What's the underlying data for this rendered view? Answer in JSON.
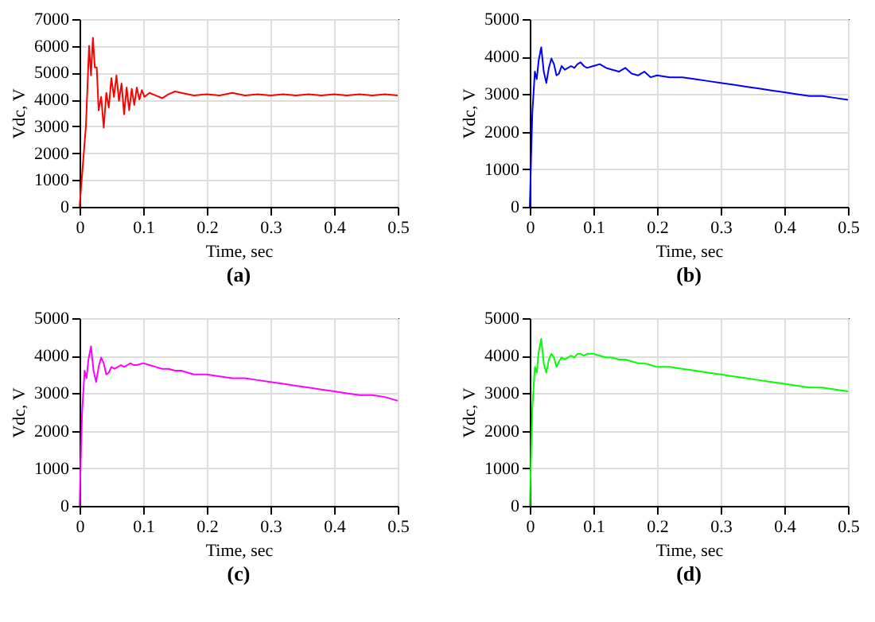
{
  "chart_data": [
    {
      "type": "line",
      "xlabel": "Time, sec",
      "ylabel": "Vdc, V",
      "annotations": [
        "(a)"
      ],
      "xlim": [
        0,
        0.5
      ],
      "xticks": [
        0,
        0.1,
        0.2,
        0.3,
        0.4,
        0.5
      ],
      "ylim": [
        0,
        7000
      ],
      "yticks": [
        0,
        1000,
        2000,
        3000,
        4000,
        5000,
        6000,
        7000
      ],
      "grid": true,
      "line_style": "solid",
      "marker": "none",
      "x": [
        0,
        0.005,
        0.01,
        0.015,
        0.018,
        0.021,
        0.024,
        0.027,
        0.03,
        0.034,
        0.038,
        0.042,
        0.046,
        0.05,
        0.054,
        0.058,
        0.062,
        0.066,
        0.07,
        0.074,
        0.078,
        0.082,
        0.086,
        0.09,
        0.094,
        0.098,
        0.102,
        0.11,
        0.12,
        0.13,
        0.14,
        0.15,
        0.16,
        0.17,
        0.18,
        0.2,
        0.22,
        0.24,
        0.26,
        0.28,
        0.3,
        0.32,
        0.34,
        0.36,
        0.38,
        0.4,
        0.42,
        0.44,
        0.46,
        0.48,
        0.5
      ],
      "series": [
        {
          "color": "#ff0000",
          "values": [
            0,
            1500,
            3000,
            6000,
            4900,
            6300,
            5200,
            5200,
            3600,
            4100,
            2950,
            4250,
            3700,
            4800,
            4100,
            4900,
            3950,
            4600,
            3450,
            4450,
            3600,
            4400,
            3800,
            4450,
            4000,
            4350,
            4100,
            4250,
            4150,
            4050,
            4200,
            4300,
            4250,
            4200,
            4150,
            4200,
            4150,
            4250,
            4150,
            4200,
            4150,
            4200,
            4150,
            4200,
            4150,
            4200,
            4150,
            4200,
            4150,
            4200,
            4150
          ]
        }
      ]
    },
    {
      "type": "line",
      "xlabel": "Time, sec",
      "ylabel": "Vdc, V",
      "annotations": [
        "(b)"
      ],
      "xlim": [
        0,
        0.5
      ],
      "xticks": [
        0,
        0.1,
        0.2,
        0.3,
        0.4,
        0.5
      ],
      "ylim": [
        0,
        5000
      ],
      "yticks": [
        0,
        1000,
        2000,
        3000,
        4000,
        5000
      ],
      "grid": true,
      "line_style": "solid",
      "marker": "none",
      "x": [
        0,
        0.004,
        0.008,
        0.011,
        0.014,
        0.018,
        0.022,
        0.026,
        0.03,
        0.034,
        0.038,
        0.042,
        0.046,
        0.05,
        0.055,
        0.06,
        0.065,
        0.07,
        0.075,
        0.08,
        0.085,
        0.09,
        0.1,
        0.11,
        0.12,
        0.13,
        0.14,
        0.15,
        0.16,
        0.17,
        0.18,
        0.19,
        0.2,
        0.22,
        0.24,
        0.26,
        0.28,
        0.3,
        0.32,
        0.34,
        0.36,
        0.38,
        0.4,
        0.42,
        0.44,
        0.46,
        0.48,
        0.5
      ],
      "series": [
        {
          "color": "#0000ff",
          "values": [
            0,
            2500,
            3600,
            3400,
            3900,
            4250,
            3600,
            3300,
            3700,
            3950,
            3800,
            3500,
            3550,
            3750,
            3650,
            3700,
            3750,
            3700,
            3800,
            3850,
            3750,
            3700,
            3750,
            3800,
            3700,
            3650,
            3600,
            3700,
            3550,
            3500,
            3600,
            3450,
            3500,
            3450,
            3450,
            3400,
            3350,
            3300,
            3250,
            3200,
            3150,
            3100,
            3050,
            3000,
            2950,
            2950,
            2900,
            2850
          ]
        }
      ]
    },
    {
      "type": "line",
      "xlabel": "Time, sec",
      "ylabel": "Vdc, V",
      "annotations": [
        "(c)"
      ],
      "xlim": [
        0,
        0.5
      ],
      "xticks": [
        0,
        0.1,
        0.2,
        0.3,
        0.4,
        0.5
      ],
      "ylim": [
        0,
        5000
      ],
      "yticks": [
        0,
        1000,
        2000,
        3000,
        4000,
        5000
      ],
      "grid": true,
      "line_style": "solid",
      "marker": "none",
      "x": [
        0,
        0.004,
        0.008,
        0.011,
        0.014,
        0.018,
        0.022,
        0.026,
        0.03,
        0.034,
        0.038,
        0.042,
        0.046,
        0.05,
        0.055,
        0.06,
        0.065,
        0.07,
        0.075,
        0.08,
        0.085,
        0.09,
        0.1,
        0.11,
        0.12,
        0.13,
        0.14,
        0.15,
        0.16,
        0.17,
        0.18,
        0.19,
        0.2,
        0.22,
        0.24,
        0.26,
        0.28,
        0.3,
        0.32,
        0.34,
        0.36,
        0.38,
        0.4,
        0.42,
        0.44,
        0.46,
        0.48,
        0.5
      ],
      "series": [
        {
          "color": "#ff00ff",
          "values": [
            0,
            2500,
            3600,
            3400,
            3900,
            4250,
            3600,
            3300,
            3700,
            3950,
            3800,
            3500,
            3550,
            3700,
            3650,
            3700,
            3750,
            3700,
            3750,
            3800,
            3750,
            3750,
            3800,
            3750,
            3700,
            3650,
            3650,
            3600,
            3600,
            3550,
            3500,
            3500,
            3500,
            3450,
            3400,
            3400,
            3350,
            3300,
            3250,
            3200,
            3150,
            3100,
            3050,
            3000,
            2950,
            2950,
            2900,
            2800
          ]
        }
      ]
    },
    {
      "type": "line",
      "xlabel": "Time, sec",
      "ylabel": "Vdc, V",
      "annotations": [
        "(d)"
      ],
      "xlim": [
        0,
        0.5
      ],
      "xticks": [
        0,
        0.1,
        0.2,
        0.3,
        0.4,
        0.5
      ],
      "ylim": [
        0,
        5000
      ],
      "yticks": [
        0,
        1000,
        2000,
        3000,
        4000,
        5000
      ],
      "grid": true,
      "line_style": "solid",
      "marker": "none",
      "x": [
        0,
        0.004,
        0.008,
        0.011,
        0.014,
        0.018,
        0.022,
        0.026,
        0.03,
        0.034,
        0.038,
        0.042,
        0.046,
        0.05,
        0.055,
        0.06,
        0.065,
        0.07,
        0.075,
        0.08,
        0.085,
        0.09,
        0.1,
        0.11,
        0.12,
        0.13,
        0.14,
        0.15,
        0.16,
        0.17,
        0.18,
        0.19,
        0.2,
        0.22,
        0.24,
        0.26,
        0.28,
        0.3,
        0.32,
        0.34,
        0.36,
        0.38,
        0.4,
        0.42,
        0.44,
        0.46,
        0.48,
        0.5
      ],
      "series": [
        {
          "color": "#00ff00",
          "values": [
            0,
            2600,
            3700,
            3550,
            4100,
            4450,
            3800,
            3550,
            3900,
            4050,
            3950,
            3700,
            3850,
            3950,
            3900,
            3950,
            4000,
            3950,
            4050,
            4050,
            4000,
            4050,
            4050,
            4000,
            3950,
            3950,
            3900,
            3900,
            3850,
            3800,
            3800,
            3750,
            3700,
            3700,
            3650,
            3600,
            3550,
            3500,
            3450,
            3400,
            3350,
            3300,
            3250,
            3200,
            3150,
            3150,
            3100,
            3050
          ]
        }
      ]
    }
  ]
}
